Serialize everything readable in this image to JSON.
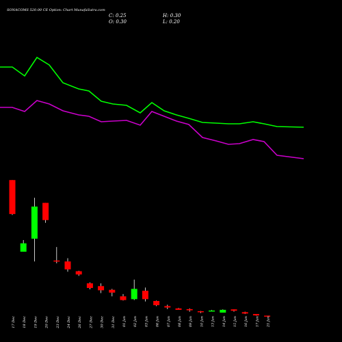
{
  "title": "SONACOMS 520.00 CE Option: Chart MunafaSutra.com",
  "ohlc": {
    "c": "C: 0.25",
    "h": "H: 0.30",
    "o": "O: 0.30",
    "l": "L: 0.20"
  },
  "chart_data": {
    "type": "candlestick",
    "title": "SONACOMS 520.00 CE Option: Chart MunafaSutra.com",
    "categories": [
      "17 Dec",
      "18 Dec",
      "19 Dec",
      "20 Dec",
      "23 Dec",
      "24 Dec",
      "26 Dec",
      "27 Dec",
      "30 Dec",
      "31 Dec",
      "01 Jan",
      "02 Jan",
      "03 Jan",
      "06 Jan",
      "07 Jan",
      "08 Jan",
      "09 Jan",
      "10 Jan",
      "13 Jan",
      "14 Jan",
      "15 Jan",
      "16 Jan",
      "17 Jan",
      "21 Jan"
    ],
    "candles": [
      {
        "open": 28.2,
        "high": 28.2,
        "low": 20.7,
        "close": 20.9
      },
      {
        "open": 12.8,
        "high": 15.3,
        "low": 12.8,
        "close": 14.6
      },
      {
        "open": 15.6,
        "high": 24.4,
        "low": 10.7,
        "close": 22.5
      },
      {
        "open": 23.3,
        "high": 23.3,
        "low": 19.0,
        "close": 19.6
      },
      {
        "open": 10.9,
        "high": 13.8,
        "low": 10.3,
        "close": 10.7
      },
      {
        "open": 10.7,
        "high": 11.4,
        "low": 8.5,
        "close": 9.0
      },
      {
        "open": 8.6,
        "high": 8.7,
        "low": 7.6,
        "close": 7.9
      },
      {
        "open": 6.0,
        "high": 6.2,
        "low": 4.7,
        "close": 5.0
      },
      {
        "open": 5.4,
        "high": 6.0,
        "low": 3.9,
        "close": 4.5
      },
      {
        "open": 4.6,
        "high": 4.8,
        "low": 3.2,
        "close": 4.0
      },
      {
        "open": 3.2,
        "high": 3.7,
        "low": 2.3,
        "close": 2.4
      },
      {
        "open": 2.6,
        "high": 6.8,
        "low": 2.4,
        "close": 4.8
      },
      {
        "open": 4.4,
        "high": 5.1,
        "low": 2.1,
        "close": 2.6
      },
      {
        "open": 2.2,
        "high": 2.3,
        "low": 1.1,
        "close": 1.3
      },
      {
        "open": 1.1,
        "high": 1.4,
        "low": 0.45,
        "close": 0.8
      },
      {
        "open": 0.6,
        "high": 0.7,
        "low": 0.4,
        "close": 0.3
      },
      {
        "open": 0.45,
        "high": 0.6,
        "low": -0.1,
        "close": 0.2
      },
      {
        "open": 0.0,
        "high": 0.05,
        "low": -0.4,
        "close": -0.1
      },
      {
        "open": 0.1,
        "high": 0.25,
        "low": 0.0,
        "close": 0.15
      },
      {
        "open": -0.3,
        "high": 0.4,
        "low": -0.3,
        "close": 0.3
      },
      {
        "open": 0.4,
        "high": 0.4,
        "low": -0.1,
        "close": 0.1
      },
      {
        "open": -0.2,
        "high": -0.1,
        "low": -0.6,
        "close": -0.5
      },
      {
        "open": -0.6,
        "high": -0.6,
        "low": -0.95,
        "close": -0.9
      },
      {
        "open": -0.95,
        "high": -0.95,
        "low": -1.1,
        "close": -1.1
      }
    ],
    "series": [
      {
        "color": "#00ff00",
        "values": [
          98,
          98,
          111,
          84,
          95,
          121,
          130,
          133,
          148,
          152,
          154,
          165,
          150,
          162,
          168,
          173,
          179,
          180,
          181,
          181,
          178,
          181,
          185,
          186
        ]
      },
      {
        "color": "#cc00cc",
        "values": [
          157,
          157,
          163,
          147,
          152,
          162,
          168,
          170,
          178,
          177,
          176,
          183,
          163,
          170,
          177,
          182,
          201,
          206,
          211,
          210,
          204,
          207,
          227,
          232
        ]
      }
    ],
    "up_color": "#00ff00",
    "down_color": "#ff0000"
  }
}
